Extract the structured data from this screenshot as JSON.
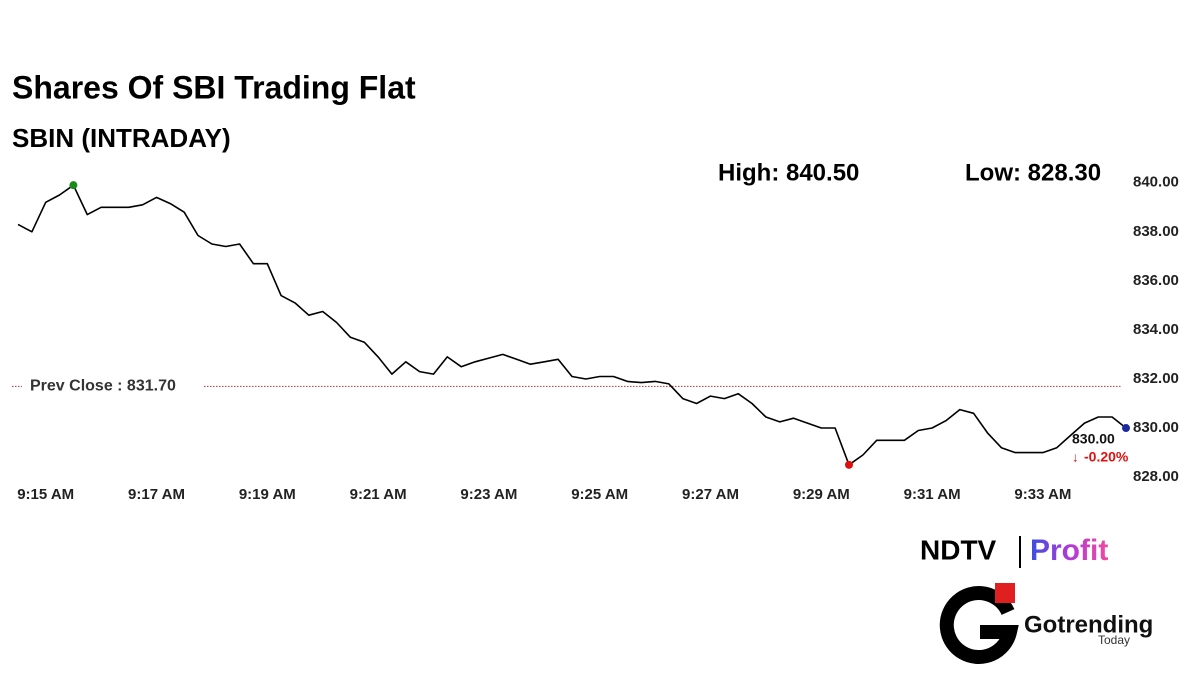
{
  "chart_data": {
    "type": "line",
    "title": "Shares Of SBI Trading Flat",
    "subtitle": "SBIN (INTRADAY)",
    "high": {
      "value": 840.5,
      "label": "High: 840.50"
    },
    "low": {
      "value": 828.3,
      "label": "Low: 828.30"
    },
    "prev_close": {
      "value": 831.7,
      "label": "Prev Close : 831.70"
    },
    "last": {
      "value": 830,
      "label": "830.00"
    },
    "change": {
      "value": -0.2,
      "label": "-0.20%"
    },
    "categories": [
      null,
      null,
      "9:15 AM",
      null,
      null,
      null,
      null,
      null,
      null,
      null,
      "9:17 AM",
      null,
      null,
      null,
      null,
      null,
      null,
      null,
      "9:19 AM",
      null,
      null,
      null,
      null,
      null,
      null,
      null,
      "9:21 AM",
      null,
      null,
      null,
      null,
      null,
      null,
      null,
      "9:23 AM",
      null,
      null,
      null,
      null,
      null,
      null,
      null,
      "9:25 AM",
      null,
      null,
      null,
      null,
      null,
      null,
      null,
      "9:27 AM",
      null,
      null,
      null,
      null,
      null,
      null,
      null,
      "9:29 AM",
      null,
      null,
      null,
      null,
      null,
      null,
      null,
      "9:31 AM",
      null,
      null,
      null,
      null,
      null,
      null,
      null,
      "9:33 AM",
      null,
      null,
      null,
      null,
      null,
      null
    ],
    "values": [
      838.3,
      838.0,
      839.2,
      839.5,
      839.9,
      838.7,
      839.0,
      839.0,
      839.0,
      839.1,
      839.4,
      839.15,
      838.8,
      837.85,
      837.5,
      837.4,
      837.5,
      836.7,
      836.7,
      835.4,
      835.1,
      834.6,
      834.75,
      834.3,
      833.7,
      833.5,
      832.9,
      832.2,
      832.7,
      832.3,
      832.2,
      832.9,
      832.5,
      832.7,
      832.85,
      833.0,
      832.8,
      832.6,
      832.7,
      832.8,
      832.1,
      832.0,
      832.1,
      832.1,
      831.9,
      831.85,
      831.9,
      831.8,
      831.2,
      831.0,
      831.3,
      831.2,
      831.4,
      831.0,
      830.45,
      830.25,
      830.4,
      830.2,
      830.0,
      830.0,
      828.5,
      828.9,
      829.5,
      829.5,
      829.5,
      829.9,
      830.0,
      830.3,
      830.75,
      830.6,
      829.8,
      829.2,
      829.0,
      829.0,
      829.0,
      829.2,
      829.7,
      830.2,
      830.45,
      830.45,
      830.0
    ],
    "color": "#000000",
    "high_color": "#1a8a1a",
    "low_color": "#e01010",
    "last_color": "#1a2aa0",
    "prev_close_color": "#c03030",
    "change_color": "#e01010",
    "ylim": [
      827.8,
      840.6
    ],
    "yticks": [
      {
        "value": 828,
        "label": "828.00"
      },
      {
        "value": 830,
        "label": "830.00"
      },
      {
        "value": 832,
        "label": "832.00"
      },
      {
        "value": 834,
        "label": "834.00"
      },
      {
        "value": 836,
        "label": "836.00"
      },
      {
        "value": 838,
        "label": "838.00"
      },
      {
        "value": 840,
        "label": "840.00"
      }
    ],
    "grid": false
  },
  "branding": {
    "ndtv": "NDTV",
    "profit": "Profit",
    "name": "Gotrending",
    "tagline": "Today"
  }
}
